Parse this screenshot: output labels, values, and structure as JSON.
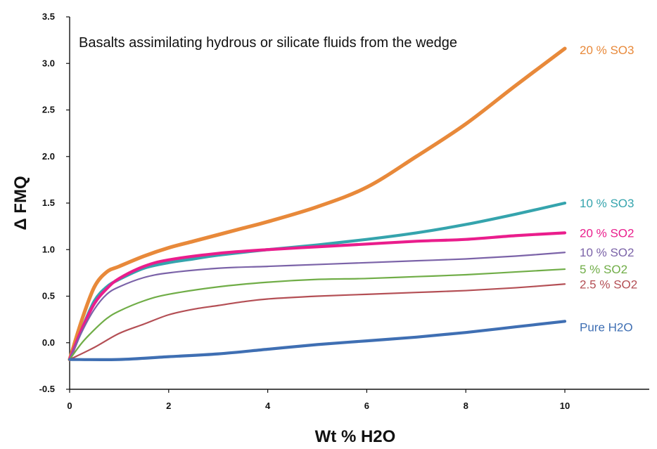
{
  "chart_data": {
    "type": "line",
    "title": "Basalts assimilating hydrous or silicate fluids from the wedge",
    "xlabel": "Wt % H2O",
    "ylabel": "Δ FMQ",
    "xlim": [
      0,
      12
    ],
    "ylim": [
      -0.5,
      3.5
    ],
    "x_ticks": [
      0,
      2,
      4,
      6,
      8,
      10
    ],
    "y_ticks": [
      -0.5,
      0.0,
      0.5,
      1.0,
      1.5,
      2.0,
      2.5,
      3.0,
      3.5
    ],
    "grid": false,
    "legend": "inline labels at right end of each curve",
    "series": [
      {
        "name": "20 % SO3",
        "color": "#e8893a",
        "x": [
          0,
          0.25,
          0.5,
          0.75,
          1,
          1.5,
          2,
          2.5,
          3,
          3.5,
          4,
          5,
          6,
          7,
          8,
          9,
          10
        ],
        "y": [
          -0.18,
          0.25,
          0.6,
          0.76,
          0.82,
          0.93,
          1.02,
          1.09,
          1.16,
          1.23,
          1.3,
          1.46,
          1.67,
          2.0,
          2.35,
          2.76,
          3.16
        ]
      },
      {
        "name": "10 % SO3",
        "color": "#35a4ad",
        "x": [
          0,
          0.25,
          0.5,
          0.75,
          1,
          1.5,
          2,
          2.5,
          3,
          4,
          5,
          6,
          7,
          8,
          9,
          10
        ],
        "y": [
          -0.18,
          0.15,
          0.45,
          0.6,
          0.68,
          0.8,
          0.86,
          0.9,
          0.94,
          1.0,
          1.05,
          1.11,
          1.18,
          1.27,
          1.38,
          1.5
        ]
      },
      {
        "name": "20 % SO2",
        "color": "#ea1d8c",
        "x": [
          0,
          0.25,
          0.5,
          0.75,
          1,
          1.5,
          2,
          3,
          4,
          5,
          6,
          7,
          8,
          9,
          10
        ],
        "y": [
          -0.18,
          0.15,
          0.42,
          0.58,
          0.69,
          0.82,
          0.89,
          0.96,
          1.0,
          1.03,
          1.06,
          1.09,
          1.11,
          1.15,
          1.18
        ]
      },
      {
        "name": "10 % SO2",
        "color": "#7b63a8",
        "x": [
          0,
          0.25,
          0.5,
          0.75,
          1,
          1.5,
          2,
          3,
          4,
          5,
          6,
          7,
          8,
          9,
          10
        ],
        "y": [
          -0.18,
          0.12,
          0.36,
          0.52,
          0.6,
          0.7,
          0.75,
          0.8,
          0.82,
          0.84,
          0.86,
          0.88,
          0.9,
          0.93,
          0.97
        ]
      },
      {
        "name": "5 % SO2",
        "color": "#70ad47",
        "x": [
          0,
          0.25,
          0.5,
          0.75,
          1,
          1.5,
          2,
          3,
          4,
          5,
          6,
          7,
          8,
          9,
          10
        ],
        "y": [
          -0.18,
          0.0,
          0.14,
          0.26,
          0.34,
          0.45,
          0.52,
          0.6,
          0.65,
          0.68,
          0.69,
          0.71,
          0.73,
          0.76,
          0.79
        ]
      },
      {
        "name": "2.5 % SO2",
        "color": "#b44f55",
        "x": [
          0,
          0.5,
          1,
          1.5,
          2,
          2.5,
          3,
          3.5,
          4,
          5,
          6,
          7,
          8,
          9,
          10
        ],
        "y": [
          -0.18,
          -0.05,
          0.1,
          0.2,
          0.3,
          0.36,
          0.4,
          0.44,
          0.47,
          0.5,
          0.52,
          0.54,
          0.56,
          0.59,
          0.63
        ]
      },
      {
        "name": "Pure H2O",
        "color": "#3f6fb3",
        "x": [
          0,
          1,
          2,
          3,
          4,
          5,
          6,
          7,
          8,
          9,
          10
        ],
        "y": [
          -0.18,
          -0.18,
          -0.15,
          -0.12,
          -0.07,
          -0.02,
          0.02,
          0.06,
          0.11,
          0.17,
          0.23
        ]
      }
    ]
  }
}
